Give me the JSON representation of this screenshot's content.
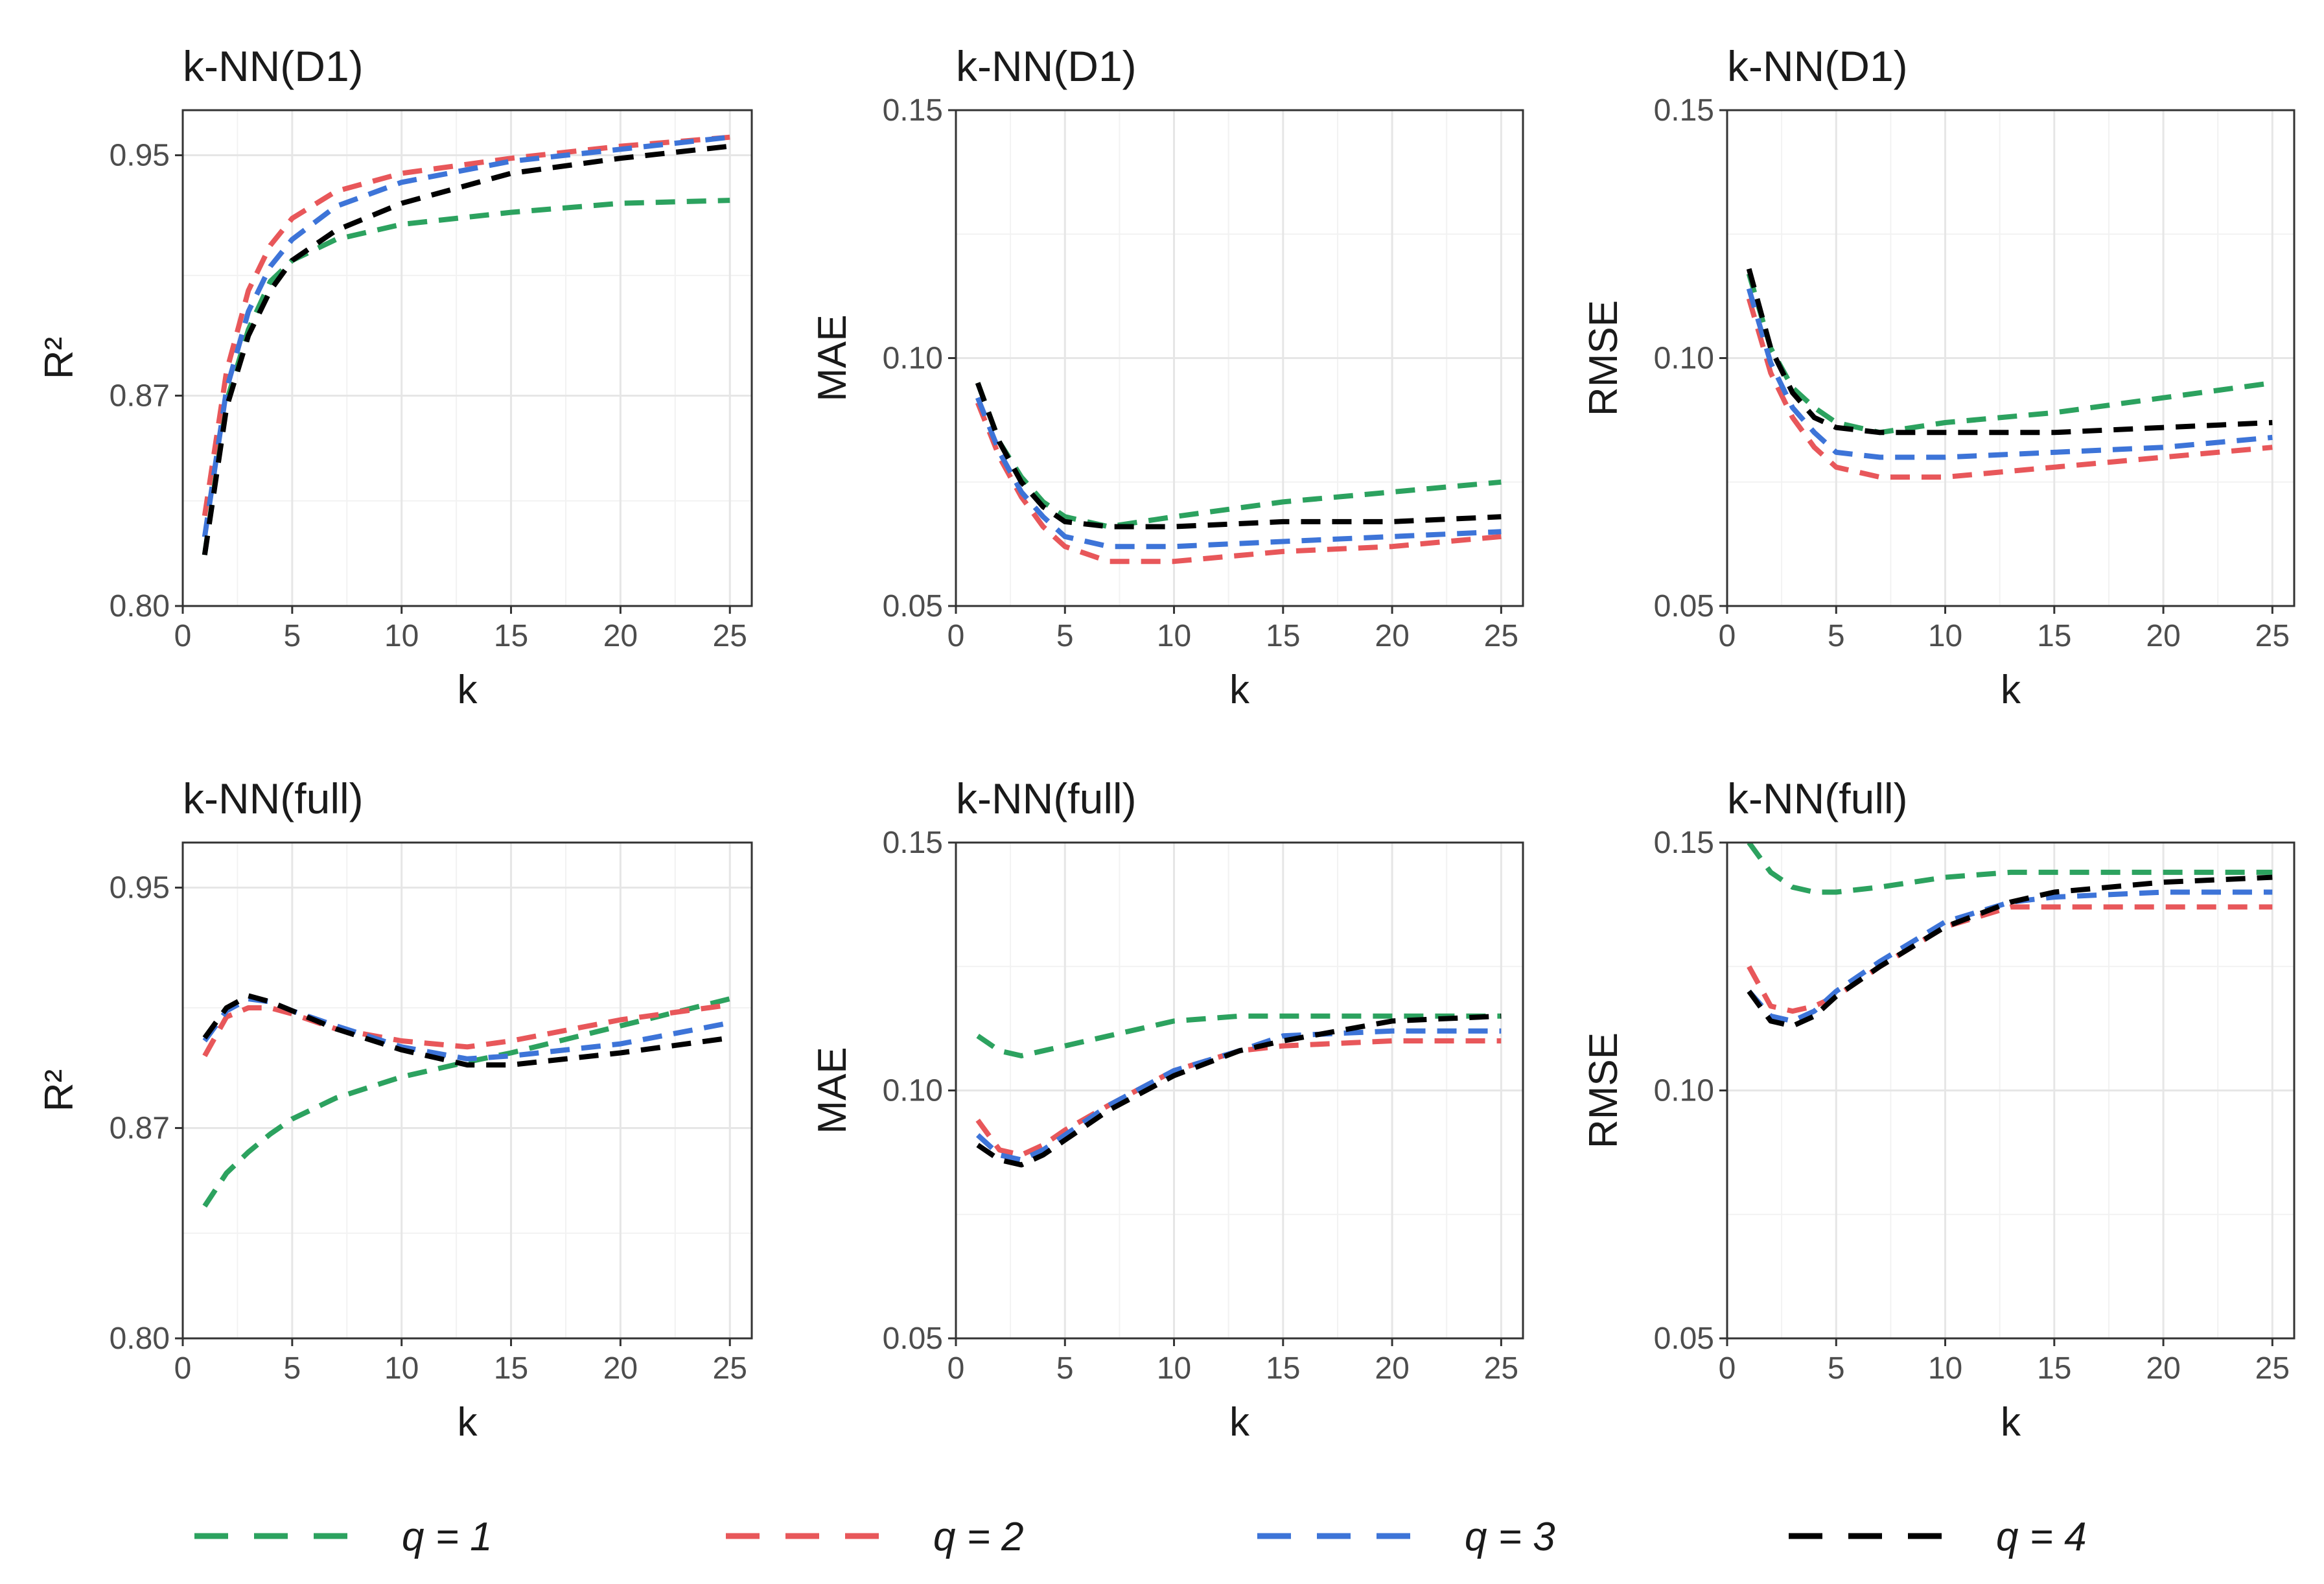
{
  "figure": {
    "legend": [
      {
        "label": "q = 1",
        "color": "#2ca25f"
      },
      {
        "label": "q = 2",
        "color": "#e8575a"
      },
      {
        "label": "q = 3",
        "color": "#3d74d8"
      },
      {
        "label": "q = 4",
        "color": "#000000"
      }
    ]
  },
  "chart_data": [
    {
      "type": "line",
      "title": "k-NN(D1)",
      "xlabel": "k",
      "ylabel": "R²",
      "xlim": [
        0,
        26
      ],
      "ylim": [
        0.8,
        0.965
      ],
      "xticks": [
        0,
        5,
        10,
        15,
        20,
        25
      ],
      "xtick_labels": [
        "0",
        "5",
        "10",
        "15",
        "20",
        "25"
      ],
      "yticks": [
        0.8,
        0.87,
        0.95
      ],
      "ytick_labels": [
        "0.80",
        "0.87",
        "0.95"
      ],
      "x": [
        1,
        2,
        3,
        4,
        5,
        7,
        10,
        15,
        20,
        25
      ],
      "series": [
        {
          "name": "q = 1",
          "values": [
            0.817,
            0.868,
            0.892,
            0.908,
            0.915,
            0.922,
            0.927,
            0.931,
            0.934,
            0.935
          ]
        },
        {
          "name": "q = 2",
          "values": [
            0.83,
            0.878,
            0.905,
            0.92,
            0.929,
            0.938,
            0.944,
            0.949,
            0.953,
            0.956
          ]
        },
        {
          "name": "q = 3",
          "values": [
            0.823,
            0.872,
            0.898,
            0.913,
            0.922,
            0.933,
            0.941,
            0.948,
            0.952,
            0.956
          ]
        },
        {
          "name": "q = 4",
          "values": [
            0.817,
            0.866,
            0.89,
            0.905,
            0.915,
            0.925,
            0.934,
            0.944,
            0.949,
            0.953
          ]
        }
      ]
    },
    {
      "type": "line",
      "title": "k-NN(D1)",
      "xlabel": "k",
      "ylabel": "MAE",
      "xlim": [
        0,
        26
      ],
      "ylim": [
        0.05,
        0.15
      ],
      "xticks": [
        0,
        5,
        10,
        15,
        20,
        25
      ],
      "xtick_labels": [
        "0",
        "5",
        "10",
        "15",
        "20",
        "25"
      ],
      "yticks": [
        0.05,
        0.1,
        0.15
      ],
      "ytick_labels": [
        "0.05",
        "0.10",
        "0.15"
      ],
      "x": [
        1,
        2,
        3,
        4,
        5,
        7,
        10,
        15,
        20,
        25
      ],
      "series": [
        {
          "name": "q = 1",
          "values": [
            0.095,
            0.083,
            0.076,
            0.071,
            0.068,
            0.066,
            0.068,
            0.071,
            0.073,
            0.075
          ]
        },
        {
          "name": "q = 2",
          "values": [
            0.091,
            0.08,
            0.072,
            0.066,
            0.062,
            0.059,
            0.059,
            0.061,
            0.062,
            0.064
          ]
        },
        {
          "name": "q = 3",
          "values": [
            0.092,
            0.081,
            0.073,
            0.068,
            0.064,
            0.062,
            0.062,
            0.063,
            0.064,
            0.065
          ]
        },
        {
          "name": "q = 4",
          "values": [
            0.095,
            0.083,
            0.075,
            0.07,
            0.067,
            0.066,
            0.066,
            0.067,
            0.067,
            0.068
          ]
        }
      ]
    },
    {
      "type": "line",
      "title": "k-NN(D1)",
      "xlabel": "k",
      "ylabel": "RMSE",
      "xlim": [
        0,
        26
      ],
      "ylim": [
        0.05,
        0.15
      ],
      "xticks": [
        0,
        5,
        10,
        15,
        20,
        25
      ],
      "xtick_labels": [
        "0",
        "5",
        "10",
        "15",
        "20",
        "25"
      ],
      "yticks": [
        0.05,
        0.1,
        0.15
      ],
      "ytick_labels": [
        "0.05",
        "0.10",
        "0.15"
      ],
      "x": [
        1,
        2,
        3,
        4,
        5,
        7,
        10,
        15,
        20,
        25
      ],
      "series": [
        {
          "name": "q = 1",
          "values": [
            0.117,
            0.102,
            0.094,
            0.09,
            0.087,
            0.085,
            0.087,
            0.089,
            0.092,
            0.095
          ]
        },
        {
          "name": "q = 2",
          "values": [
            0.112,
            0.097,
            0.088,
            0.082,
            0.078,
            0.076,
            0.076,
            0.078,
            0.08,
            0.082
          ]
        },
        {
          "name": "q = 3",
          "values": [
            0.114,
            0.099,
            0.09,
            0.085,
            0.081,
            0.08,
            0.08,
            0.081,
            0.082,
            0.084
          ]
        },
        {
          "name": "q = 4",
          "values": [
            0.118,
            0.102,
            0.093,
            0.088,
            0.086,
            0.085,
            0.085,
            0.085,
            0.086,
            0.087
          ]
        }
      ]
    },
    {
      "type": "line",
      "title": "k-NN(full)",
      "xlabel": "k",
      "ylabel": "R²",
      "xlim": [
        0,
        26
      ],
      "ylim": [
        0.8,
        0.965
      ],
      "xticks": [
        0,
        5,
        10,
        15,
        20,
        25
      ],
      "xtick_labels": [
        "0",
        "5",
        "10",
        "15",
        "20",
        "25"
      ],
      "yticks": [
        0.8,
        0.87,
        0.95
      ],
      "ytick_labels": [
        "0.80",
        "0.87",
        "0.95"
      ],
      "x": [
        1,
        2,
        3,
        4,
        5,
        7,
        10,
        13,
        15,
        20,
        25
      ],
      "series": [
        {
          "name": "q = 1",
          "values": [
            0.844,
            0.855,
            0.862,
            0.868,
            0.873,
            0.88,
            0.887,
            0.892,
            0.895,
            0.904,
            0.913
          ]
        },
        {
          "name": "q = 2",
          "values": [
            0.894,
            0.907,
            0.91,
            0.91,
            0.908,
            0.903,
            0.899,
            0.897,
            0.899,
            0.906,
            0.911
          ]
        },
        {
          "name": "q = 3",
          "values": [
            0.899,
            0.909,
            0.913,
            0.912,
            0.909,
            0.904,
            0.897,
            0.893,
            0.894,
            0.898,
            0.905
          ]
        },
        {
          "name": "q = 4",
          "values": [
            0.9,
            0.91,
            0.914,
            0.912,
            0.909,
            0.903,
            0.896,
            0.891,
            0.891,
            0.895,
            0.9
          ]
        }
      ]
    },
    {
      "type": "line",
      "title": "k-NN(full)",
      "xlabel": "k",
      "ylabel": "MAE",
      "xlim": [
        0,
        26
      ],
      "ylim": [
        0.05,
        0.15
      ],
      "xticks": [
        0,
        5,
        10,
        15,
        20,
        25
      ],
      "xtick_labels": [
        "0",
        "5",
        "10",
        "15",
        "20",
        "25"
      ],
      "yticks": [
        0.05,
        0.1,
        0.15
      ],
      "ytick_labels": [
        "0.05",
        "0.10",
        "0.15"
      ],
      "x": [
        1,
        2,
        3,
        4,
        5,
        7,
        10,
        13,
        15,
        20,
        25
      ],
      "series": [
        {
          "name": "q = 1",
          "values": [
            0.111,
            0.108,
            0.107,
            0.108,
            0.109,
            0.111,
            0.114,
            0.115,
            0.115,
            0.115,
            0.115
          ]
        },
        {
          "name": "q = 2",
          "values": [
            0.094,
            0.088,
            0.087,
            0.089,
            0.092,
            0.097,
            0.104,
            0.108,
            0.109,
            0.11,
            0.11
          ]
        },
        {
          "name": "q = 3",
          "values": [
            0.091,
            0.087,
            0.086,
            0.088,
            0.091,
            0.097,
            0.104,
            0.108,
            0.111,
            0.112,
            0.112
          ]
        },
        {
          "name": "q = 4",
          "values": [
            0.089,
            0.086,
            0.085,
            0.087,
            0.09,
            0.096,
            0.103,
            0.108,
            0.11,
            0.114,
            0.115
          ]
        }
      ]
    },
    {
      "type": "line",
      "title": "k-NN(full)",
      "xlabel": "k",
      "ylabel": "RMSE",
      "xlim": [
        0,
        26
      ],
      "ylim": [
        0.05,
        0.15
      ],
      "xticks": [
        0,
        5,
        10,
        15,
        20,
        25
      ],
      "xtick_labels": [
        "0",
        "5",
        "10",
        "15",
        "20",
        "25"
      ],
      "yticks": [
        0.05,
        0.1,
        0.15
      ],
      "ytick_labels": [
        "0.05",
        "0.10",
        "0.15"
      ],
      "x": [
        1,
        2,
        3,
        4,
        5,
        7,
        10,
        13,
        15,
        20,
        25
      ],
      "series": [
        {
          "name": "q = 1",
          "values": [
            0.15,
            0.144,
            0.141,
            0.14,
            0.14,
            0.141,
            0.143,
            0.144,
            0.144,
            0.144,
            0.144
          ]
        },
        {
          "name": "q = 2",
          "values": [
            0.125,
            0.117,
            0.116,
            0.117,
            0.119,
            0.125,
            0.133,
            0.137,
            0.137,
            0.137,
            0.137
          ]
        },
        {
          "name": "q = 3",
          "values": [
            0.12,
            0.115,
            0.114,
            0.116,
            0.12,
            0.126,
            0.134,
            0.138,
            0.139,
            0.14,
            0.14
          ]
        },
        {
          "name": "q = 4",
          "values": [
            0.12,
            0.114,
            0.113,
            0.115,
            0.119,
            0.125,
            0.133,
            0.138,
            0.14,
            0.142,
            0.143
          ]
        }
      ]
    }
  ]
}
